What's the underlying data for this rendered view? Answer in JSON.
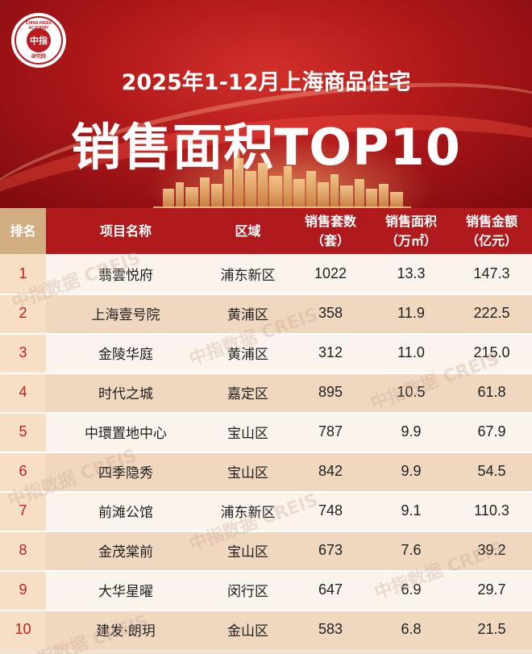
{
  "logo": {
    "center_text": "中指",
    "ring_text": "CHINA INDEX ACADEMY",
    "sub_text": "研究院"
  },
  "header": {
    "subtitle": "2025年1-12月上海商品住宅",
    "title": "销售面积TOP10"
  },
  "table": {
    "columns": [
      "排名",
      "项目名称",
      "区域",
      "销售套数\n（套）",
      "销售面积\n（万㎡）",
      "销售金额\n（亿元）"
    ],
    "rows": [
      {
        "rank": "1",
        "name": "翡雲悦府",
        "district": "浦东新区",
        "units": "1022",
        "area": "13.3",
        "amount": "147.3"
      },
      {
        "rank": "2",
        "name": "上海壹号院",
        "district": "黄浦区",
        "units": "358",
        "area": "11.9",
        "amount": "222.5"
      },
      {
        "rank": "3",
        "name": "金陵华庭",
        "district": "黄浦区",
        "units": "312",
        "area": "11.0",
        "amount": "215.0"
      },
      {
        "rank": "4",
        "name": "时代之城",
        "district": "嘉定区",
        "units": "895",
        "area": "10.5",
        "amount": "61.8"
      },
      {
        "rank": "5",
        "name": "中環置地中心",
        "district": "宝山区",
        "units": "787",
        "area": "9.9",
        "amount": "67.9"
      },
      {
        "rank": "6",
        "name": "四季隐秀",
        "district": "宝山区",
        "units": "842",
        "area": "9.9",
        "amount": "54.5"
      },
      {
        "rank": "7",
        "name": "前滩公馆",
        "district": "浦东新区",
        "units": "748",
        "area": "9.1",
        "amount": "110.3"
      },
      {
        "rank": "8",
        "name": "金茂棠前",
        "district": "宝山区",
        "units": "673",
        "area": "7.6",
        "amount": "39.2"
      },
      {
        "rank": "9",
        "name": "大华星曜",
        "district": "闵行区",
        "units": "647",
        "area": "6.9",
        "amount": "29.7"
      },
      {
        "rank": "10",
        "name": "建发·朗玥",
        "district": "金山区",
        "units": "583",
        "area": "6.8",
        "amount": "21.5"
      }
    ]
  },
  "watermark": "中指数据 CREIS",
  "colors": {
    "banner_red": "#b0181a",
    "header_red": "#b01a1c",
    "rank_header_tan": "#d3ad82",
    "rank_red": "#c21d1d",
    "row_light": "#fbf4ec",
    "row_dark": "#f0d8c0"
  }
}
